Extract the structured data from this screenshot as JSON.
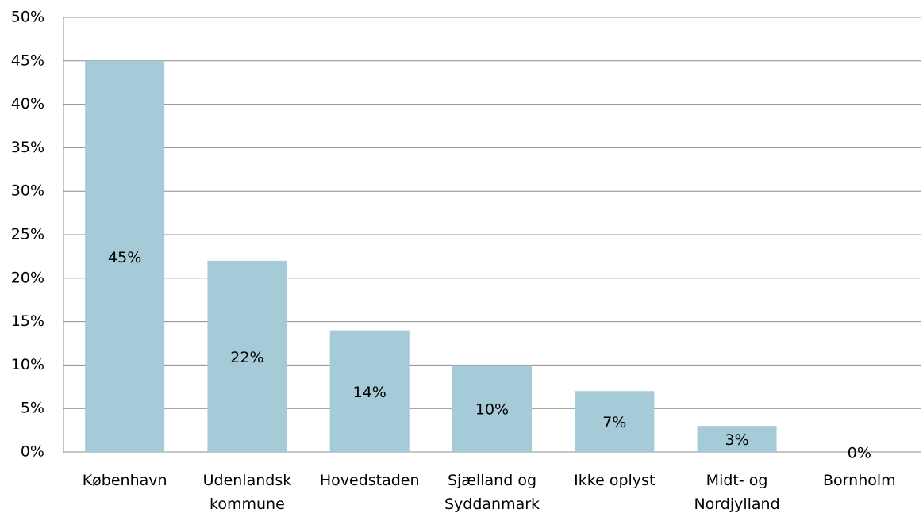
{
  "chart_data": {
    "type": "bar",
    "categories": [
      "København",
      "Udenlandsk kommune",
      "Hovedstaden",
      "Sjælland og Syddanmark",
      "Ikke oplyst",
      "Midt- og Nordjylland",
      "Bornholm"
    ],
    "values": [
      45,
      22,
      14,
      10,
      7,
      3,
      0
    ],
    "value_labels": [
      "45%",
      "22%",
      "14%",
      "10%",
      "7%",
      "3%",
      "0%"
    ],
    "color": "#a5cad8",
    "ylim": [
      0,
      50
    ],
    "yticks": [
      {
        "value": 0,
        "label": "0%"
      },
      {
        "value": 5,
        "label": "5%"
      },
      {
        "value": 10,
        "label": "10%"
      },
      {
        "value": 15,
        "label": "15%"
      },
      {
        "value": 20,
        "label": "20%"
      },
      {
        "value": 25,
        "label": "25%"
      },
      {
        "value": 30,
        "label": "30%"
      },
      {
        "value": 35,
        "label": "35%"
      },
      {
        "value": 40,
        "label": "40%"
      },
      {
        "value": 45,
        "label": "45%"
      },
      {
        "value": 50,
        "label": "50%"
      }
    ],
    "grid": true
  }
}
